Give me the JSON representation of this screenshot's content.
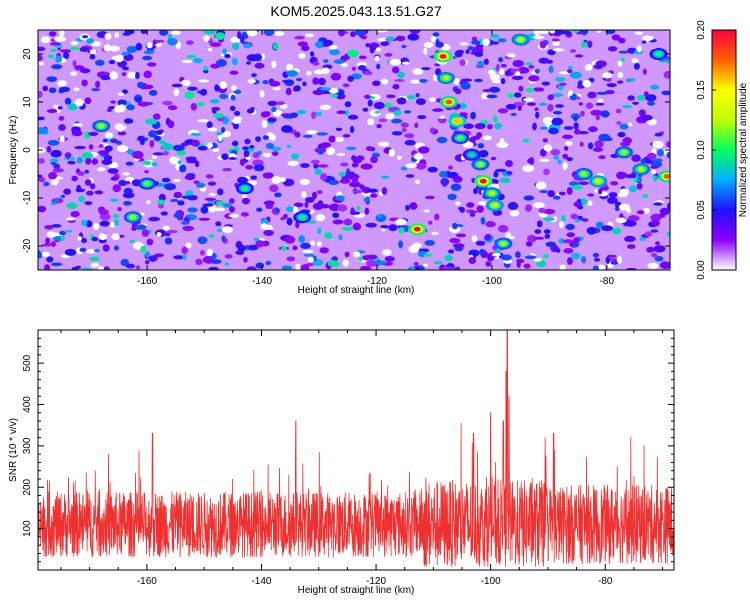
{
  "title": "KOM5.2025.043.13.51.G27",
  "chart_data": [
    {
      "type": "heatmap",
      "xlabel": "Height of straight line (km)",
      "ylabel": "Frequency (Hz)",
      "xlim": [
        -179,
        -69
      ],
      "ylim": [
        -25,
        25
      ],
      "x_ticks": [
        "-160",
        "-140",
        "-120",
        "-100",
        "-80"
      ],
      "x_tick_values": [
        -160,
        -140,
        -120,
        -100,
        -80
      ],
      "y_ticks": [
        "-20",
        "-10",
        "0",
        "10",
        "20"
      ],
      "y_tick_values": [
        -20,
        -10,
        0,
        10,
        20
      ],
      "colorbar": {
        "label": "Normalized spectral amplitude",
        "range": [
          0,
          0.2
        ],
        "ticks": [
          "0.00",
          "0.05",
          "0.10",
          "0.15",
          "0.20"
        ],
        "tick_values": [
          0,
          0.05,
          0.1,
          0.15,
          0.2
        ],
        "colors": [
          "#ffffff",
          "#8a00ff",
          "#2010ff",
          "#00b0ff",
          "#00ff60",
          "#c0ff00",
          "#ffff00",
          "#ff6000",
          "#ff0040"
        ]
      },
      "peaks": [
        {
          "x": -108.5,
          "y": 19.5,
          "v": 0.2
        },
        {
          "x": -108.0,
          "y": 15.0,
          "v": 0.13
        },
        {
          "x": -107.5,
          "y": 10.0,
          "v": 0.18
        },
        {
          "x": -106.0,
          "y": 6.0,
          "v": 0.16
        },
        {
          "x": -105.5,
          "y": 2.5,
          "v": 0.11
        },
        {
          "x": -103.5,
          "y": -1.0,
          "v": 0.09
        },
        {
          "x": -102.0,
          "y": -3.0,
          "v": 0.12
        },
        {
          "x": -101.5,
          "y": -6.5,
          "v": 0.2
        },
        {
          "x": -100.0,
          "y": -9.0,
          "v": 0.13
        },
        {
          "x": -99.5,
          "y": -11.5,
          "v": 0.14
        },
        {
          "x": -98.0,
          "y": -19.5,
          "v": 0.12
        },
        {
          "x": -113.0,
          "y": -16.5,
          "v": 0.2
        },
        {
          "x": -69.5,
          "y": -5.5,
          "v": 0.18
        },
        {
          "x": -74.0,
          "y": -4.0,
          "v": 0.13
        },
        {
          "x": -77.0,
          "y": -0.5,
          "v": 0.12
        },
        {
          "x": -81.5,
          "y": -6.5,
          "v": 0.14
        },
        {
          "x": -84.0,
          "y": -5.0,
          "v": 0.12
        },
        {
          "x": -162.5,
          "y": -14.0,
          "v": 0.12
        },
        {
          "x": -168.0,
          "y": 5.0,
          "v": 0.12
        },
        {
          "x": -160.0,
          "y": -7.0,
          "v": 0.11
        },
        {
          "x": -95.0,
          "y": 23.0,
          "v": 0.13
        },
        {
          "x": -71.0,
          "y": 20.0,
          "v": 0.1
        },
        {
          "x": -133.0,
          "y": -14.0,
          "v": 0.1
        },
        {
          "x": -143.0,
          "y": -8.0,
          "v": 0.1
        }
      ]
    },
    {
      "type": "line",
      "xlabel": "Height of straight line (km)",
      "ylabel": "SNR (10 * v/v)",
      "xlim": [
        -179,
        -68
      ],
      "ylim": [
        0,
        580
      ],
      "x_ticks": [
        "-160",
        "-140",
        "-120",
        "-100",
        "-80"
      ],
      "x_tick_values": [
        -160,
        -140,
        -120,
        -100,
        -80
      ],
      "y_ticks": [
        "100",
        "200",
        "300",
        "400",
        "500"
      ],
      "y_tick_values": [
        100,
        200,
        300,
        400,
        500
      ],
      "color": "#ee3030",
      "baseline": 110,
      "spread": 80,
      "peaks": [
        {
          "x": -97.1,
          "y": 580
        },
        {
          "x": -97.3,
          "y": 480
        },
        {
          "x": -96.8,
          "y": 420
        },
        {
          "x": -97.8,
          "y": 360
        },
        {
          "x": -103.0,
          "y": 330
        },
        {
          "x": -134.0,
          "y": 360
        },
        {
          "x": -100.0,
          "y": 380
        },
        {
          "x": -159.0,
          "y": 330
        },
        {
          "x": -89.0,
          "y": 330
        }
      ]
    }
  ]
}
